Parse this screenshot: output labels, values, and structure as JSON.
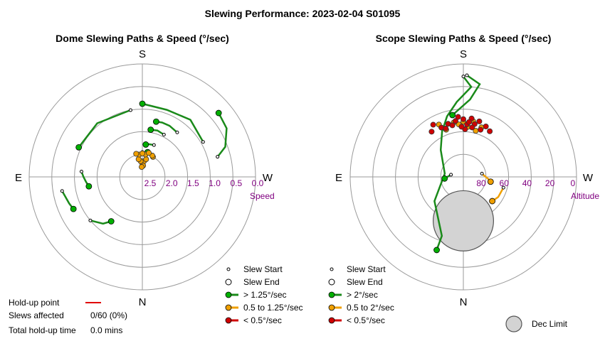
{
  "title": "Slewing Performance: 2023-02-04 S01095",
  "charts": [
    {
      "id": "dome",
      "subtitle": "Dome Slewing Paths & Speed (°/sec)",
      "directions": {
        "top": "S",
        "bottom": "N",
        "left": "E",
        "right": "W"
      },
      "radial_label": "Speed",
      "tick_labels": [
        "2.5",
        "2.0",
        "1.5",
        "1.0",
        "0.5",
        "0.0"
      ]
    },
    {
      "id": "scope",
      "subtitle": "Scope Slewing Paths & Speed (°/sec)",
      "directions": {
        "top": "S",
        "bottom": "N",
        "left": "E",
        "right": "W"
      },
      "radial_label": "Altitude",
      "tick_labels": [
        "80",
        "60",
        "40",
        "20",
        "0"
      ]
    }
  ],
  "legends": [
    {
      "id": "dome-legend",
      "items": [
        {
          "kind": "start",
          "label": "Slew Start"
        },
        {
          "kind": "end",
          "label": "Slew End"
        },
        {
          "kind": "fast",
          "label": "> 1.25°/sec",
          "color": "#00b000"
        },
        {
          "kind": "mid",
          "label": "0.5 to 1.25°/sec",
          "color": "#f0a000"
        },
        {
          "kind": "slow",
          "label": "< 0.5°/sec",
          "color": "#d00000"
        }
      ]
    },
    {
      "id": "scope-legend",
      "items": [
        {
          "kind": "start",
          "label": "Slew Start"
        },
        {
          "kind": "end",
          "label": "Slew End"
        },
        {
          "kind": "fast",
          "label": "> 2°/sec",
          "color": "#00b000"
        },
        {
          "kind": "mid",
          "label": "0.5 to 2°/sec",
          "color": "#f0a000"
        },
        {
          "kind": "slow",
          "label": "< 0.5°/sec",
          "color": "#d00000"
        }
      ]
    }
  ],
  "dec_limit_label": "Dec Limit",
  "holdup": {
    "point_label": "Hold-up point",
    "slews_label": "Slews affected",
    "slews_value": "0/60 (0%)",
    "time_label": "Total hold-up time",
    "time_value": "0.0 mins"
  },
  "chart_data": [
    {
      "type": "scatter",
      "title": "Dome Slewing Paths & Speed (°/sec)",
      "projection": "polar",
      "radial_quantity": "Speed",
      "radial_ticks": [
        2.5,
        2.0,
        1.5,
        1.0,
        0.5,
        0.0
      ],
      "radial_range": [
        2.5,
        0.0
      ],
      "angle_ticks": [
        "S",
        "W",
        "N",
        "E"
      ],
      "grid": true,
      "series": [
        {
          "speed_class": "fast",
          "paths": [
            {
              "points": [
                [
                  0,
                  1.95
                ],
                [
                  6,
                  1.96
                ],
                [
                  12,
                  1.94
                ]
              ]
            },
            {
              "points": [
                [
                  20,
                  1.75
                ],
                [
                  12,
                  1.76
                ],
                [
                  6,
                  1.78
                ]
              ]
            },
            {
              "points": [
                [
                  27,
                  1.45
                ],
                [
                  18,
                  1.42
                ],
                [
                  10,
                  1.44
                ]
              ]
            },
            {
              "points": [
                [
                  38,
                  1.25
                ],
                [
                  28,
                  1.22
                ],
                [
                  20,
                  1.22
                ],
                [
                  14,
                  1.24
                ]
              ]
            },
            {
              "points": [
                [
                  60,
                  0.95
                ],
                [
                  40,
                  0.85
                ],
                [
                  20,
                  0.92
                ],
                [
                  0,
                  0.88
                ]
              ]
            },
            {
              "points": [
                [
                  75,
                  0.78
                ],
                [
                  70,
                  0.55
                ],
                [
                  60,
                  0.35
                ],
                [
                  50,
                  0.3
                ]
              ]
            },
            {
              "points": [
                [
                  -10,
                  1.0
                ],
                [
                  -40,
                  0.95
                ],
                [
                  -65,
                  0.95
                ]
              ]
            },
            {
              "points": [
                [
                  -85,
                  1.15
                ],
                [
                  -90,
                  1.2
                ],
                [
                  -95,
                  1.25
                ],
                [
                  -100,
                  1.3
                ]
              ]
            },
            {
              "points": [
                [
                  -100,
                  0.7
                ],
                [
                  -110,
                  0.78
                ],
                [
                  -115,
                  0.82
                ]
              ]
            },
            {
              "points": [
                [
                  -130,
                  1.0
                ],
                [
                  -140,
                  1.15
                ],
                [
                  -145,
                  1.3
                ]
              ]
            }
          ]
        },
        {
          "speed_class": "mid",
          "points": [
            [
              0,
              2.2
            ],
            [
              6,
              2.15
            ],
            [
              12,
              2.1
            ],
            [
              -6,
              2.15
            ],
            [
              -12,
              2.1
            ],
            [
              8,
              2.0
            ],
            [
              -8,
              2.0
            ],
            [
              0,
              1.98
            ],
            [
              4,
              2.25
            ],
            [
              -4,
              2.28
            ],
            [
              28,
              2.0
            ],
            [
              25,
              1.98
            ],
            [
              15,
              1.95
            ],
            [
              -15,
              1.97
            ]
          ]
        },
        {
          "speed_class": "slow",
          "points": []
        }
      ]
    },
    {
      "type": "scatter",
      "title": "Scope Slewing Paths & Speed (°/sec)",
      "projection": "polar",
      "radial_quantity": "Altitude",
      "radial_ticks": [
        80,
        60,
        40,
        20,
        0
      ],
      "radial_range": [
        90,
        0
      ],
      "angle_ticks": [
        "S",
        "W",
        "N",
        "E"
      ],
      "grid": true,
      "dec_limit": {
        "azimuth": 180,
        "altitude": 55,
        "radius_deg": 24
      },
      "series": [
        {
          "speed_class": "fast",
          "paths": [
            {
              "points": [
                [
                  0,
                  10
                ],
                [
                  5,
                  18
                ],
                [
                  -5,
                  30
                ],
                [
                  -15,
                  40
                ],
                [
                  -25,
                  50
                ],
                [
                  -40,
                  62
                ],
                [
                  -80,
                  75
                ],
                [
                  -130,
                  60
                ],
                [
                  -160,
                  40
                ],
                [
                  -160,
                  28
                ]
              ]
            },
            {
              "points": [
                [
                  2,
                  9
                ],
                [
                  10,
                  15
                ],
                [
                  5,
                  28
                ],
                [
                  -10,
                  40
                ]
              ]
            },
            {
              "points": [
                [
                  -80,
                  80
                ],
                [
                  -95,
                  75
                ]
              ]
            }
          ]
        },
        {
          "speed_class": "mid",
          "points": [
            [
              0,
              46
            ],
            [
              10,
              45
            ],
            [
              -10,
              46
            ],
            [
              20,
              48
            ],
            [
              -20,
              50
            ],
            [
              5,
              50
            ],
            [
              -5,
              48
            ],
            [
              15,
              52
            ],
            [
              -25,
              44
            ]
          ],
          "paths": [
            {
              "points": [
                [
                  80,
                  75
                ],
                [
                  95,
                  70
                ],
                [
                  100,
                  68
                ]
              ]
            },
            {
              "points": [
                [
                  105,
                  57
                ],
                [
                  120,
                  58
                ],
                [
                  130,
                  60
                ]
              ]
            }
          ]
        },
        {
          "speed_class": "slow",
          "points": [
            [
              0,
              44
            ],
            [
              8,
              43
            ],
            [
              16,
              44
            ],
            [
              -8,
              45
            ],
            [
              -16,
              46
            ],
            [
              24,
              46
            ],
            [
              -24,
              47
            ],
            [
              4,
              48
            ],
            [
              12,
              47
            ],
            [
              -12,
              48
            ],
            [
              20,
              50
            ],
            [
              -20,
              49
            ],
            [
              2,
              52
            ],
            [
              -30,
              42
            ],
            [
              -35,
              46
            ],
            [
              30,
              48
            ],
            [
              10,
              50
            ],
            [
              -5,
              42
            ],
            [
              6,
              46
            ],
            [
              -2,
              50
            ]
          ]
        }
      ]
    }
  ]
}
